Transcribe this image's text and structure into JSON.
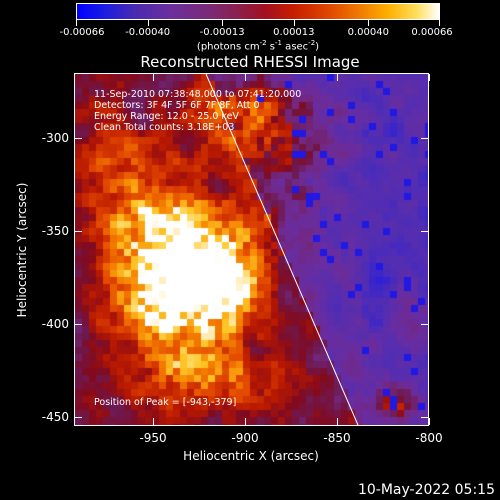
{
  "colorbar": {
    "tick_labels": [
      "-0.00066",
      "-0.00040",
      "-0.00013",
      "0.00013",
      "0.00040",
      "0.00066"
    ],
    "tick_values": [
      -0.00066,
      -0.0004,
      -0.00013,
      0.00013,
      0.0004,
      0.00066
    ],
    "range": [
      -0.00066,
      0.00066
    ]
  },
  "unit_text": "(photons cm",
  "unit_exp1": "-2",
  "unit_mid": " s",
  "unit_exp2": "-1",
  "unit_mid2": " asec",
  "unit_exp3": "-2",
  "unit_end": ")",
  "title": "Reconstructed RHESSI Image",
  "info": {
    "line1": "11-Sep-2010 07:38:48.000 to 07:41:20.000",
    "line2": "Detectors: 3F 4F 5F 6F 7F 8F, Att 0",
    "line3": "Energy Range: 12.0 - 25.0 keV",
    "line4": "Clean    Total counts: 3.18E+03"
  },
  "peak_text": "Position of Peak = [-943,-379]",
  "x_axis": {
    "label": "Heliocentric X (arcsec)",
    "ticks": [
      "-950",
      "-900",
      "-850",
      "-800"
    ],
    "tick_values": [
      -950,
      -900,
      -850,
      -800
    ],
    "range": [
      -993,
      -800
    ]
  },
  "y_axis": {
    "label": "Heliocentric Y (arcsec)",
    "ticks": [
      "-300",
      "-350",
      "-400",
      "-450"
    ],
    "tick_values": [
      -300,
      -350,
      -400,
      -450
    ],
    "range": [
      -455,
      -265
    ]
  },
  "footer_date": "10-May-2022 05:15",
  "colors": {
    "background": "#000000",
    "limb": "#ffffff"
  }
}
